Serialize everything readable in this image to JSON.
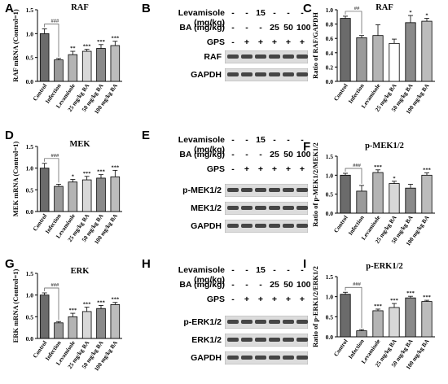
{
  "panel_letters": [
    "A",
    "B",
    "C",
    "D",
    "E",
    "F",
    "G",
    "H",
    "I"
  ],
  "chart_colors": {
    "Control": "#6b6b6b",
    "Infection": "#9a9a9a",
    "Levamisole": "#b4b4b4",
    "25 mg/kg BA": "#d8d8d8",
    "50 mg/kg BA": "#8a8a8a",
    "100 mg/kg BA": "#bcbcbc",
    "C_Control": "#6b6b6b",
    "C_Infection": "#9a9a9a",
    "C_Levamisole": "#b4b4b4",
    "C_25": "#ffffff",
    "C_50": "#8a8a8a",
    "C_100": "#bcbcbc"
  },
  "chart_data": [
    {
      "panel": "A",
      "type": "bar",
      "title": "RAF",
      "ylabel": "RAF mRNA (Control=1)",
      "ylim": [
        0,
        1.5
      ],
      "yticks": [
        "0.0",
        "0.5",
        "1.0",
        "1.5"
      ],
      "categories": [
        "Control",
        "Infection",
        "Levamisole",
        "25 mg/kg BA",
        "50 mg/kg BA",
        "100 mg/kg BA"
      ],
      "values": [
        1.0,
        0.45,
        0.56,
        0.63,
        0.69,
        0.75
      ],
      "errors": [
        0.1,
        0.03,
        0.07,
        0.04,
        0.08,
        0.09
      ],
      "annotations": [
        "",
        "###",
        "**",
        "***",
        "***",
        "***"
      ]
    },
    {
      "panel": "C",
      "type": "bar",
      "title": "RAF",
      "ylabel": "Ratio of RAF/GAPDH",
      "ylim": [
        0,
        1.0
      ],
      "yticks": [
        "0.0",
        "0.2",
        "0.4",
        "0.6",
        "0.8",
        "1.0"
      ],
      "categories": [
        "Control",
        "Infection",
        "Levamisole",
        "25 mg/kg BA",
        "50 mg/kg BA",
        "100 mg/kg BA"
      ],
      "values": [
        0.88,
        0.61,
        0.64,
        0.53,
        0.82,
        0.84
      ],
      "errors": [
        0.03,
        0.03,
        0.15,
        0.06,
        0.1,
        0.04
      ],
      "annotations": [
        "",
        "##",
        "",
        "",
        "*",
        "*"
      ]
    },
    {
      "panel": "D",
      "type": "bar",
      "title": "MEK",
      "ylabel": "MEK mRNA (Control=1)",
      "ylim": [
        0,
        1.5
      ],
      "yticks": [
        "0.0",
        "0.5",
        "1.0",
        "1.5"
      ],
      "categories": [
        "Control",
        "Infection",
        "Levamisole",
        "25 mg/kg BA",
        "50 mg/kg BA",
        "100 mg/kg BA"
      ],
      "values": [
        1.0,
        0.58,
        0.68,
        0.73,
        0.77,
        0.8
      ],
      "errors": [
        0.11,
        0.05,
        0.06,
        0.08,
        0.08,
        0.15
      ],
      "annotations": [
        "",
        "###",
        "*",
        "***",
        "***",
        "***"
      ]
    },
    {
      "panel": "F",
      "type": "bar",
      "title": "p-MEK1/2",
      "ylabel": "Ratio of p-MEK1/2/MEK1/2",
      "ylim": [
        0,
        1.5
      ],
      "yticks": [
        "0.0",
        "0.5",
        "1.0",
        "1.5"
      ],
      "categories": [
        "Control",
        "Infection",
        "Levamisole",
        "25 mg/kg BA",
        "50 mg/kg BA",
        "100 mg/kg BA"
      ],
      "values": [
        1.0,
        0.58,
        1.07,
        0.78,
        0.66,
        1.0
      ],
      "errors": [
        0.05,
        0.15,
        0.07,
        0.06,
        0.1,
        0.06
      ],
      "annotations": [
        "",
        "###",
        "***",
        "*",
        "",
        "***"
      ]
    },
    {
      "panel": "G",
      "type": "bar",
      "title": "ERK",
      "ylabel": "ERK mRNA (Control=1)",
      "ylim": [
        0,
        1.5
      ],
      "yticks": [
        "0.0",
        "0.5",
        "1.0",
        "1.5"
      ],
      "categories": [
        "Control",
        "Infection",
        "Levamisole",
        "25 mg/kg BA",
        "50 mg/kg BA",
        "100 mg/kg BA"
      ],
      "values": [
        1.0,
        0.36,
        0.5,
        0.62,
        0.69,
        0.78
      ],
      "errors": [
        0.05,
        0.03,
        0.08,
        0.1,
        0.07,
        0.05
      ],
      "annotations": [
        "",
        "###",
        "***",
        "***",
        "***",
        "***"
      ]
    },
    {
      "panel": "I",
      "type": "bar",
      "title": "p-ERK1/2",
      "ylabel": "Ratio of p-ERK1/2/ERK1/2",
      "ylim": [
        0,
        1.5
      ],
      "yticks": [
        "0.0",
        "0.5",
        "1.0",
        "1.5"
      ],
      "categories": [
        "Control",
        "Infection",
        "Levamisole",
        "25 mg/kg BA",
        "50 mg/kg BA",
        "100 mg/kg BA"
      ],
      "values": [
        1.06,
        0.15,
        0.65,
        0.73,
        0.97,
        0.88
      ],
      "errors": [
        0.05,
        0.03,
        0.04,
        0.1,
        0.04,
        0.03
      ],
      "annotations": [
        "",
        "###",
        "***",
        "***",
        "***",
        "***"
      ]
    }
  ],
  "blots": [
    {
      "panel": "B",
      "rows": [
        {
          "label": "Levamisole (mg/kg)",
          "cells": [
            "-",
            "-",
            "15",
            "-",
            "-",
            "-"
          ]
        },
        {
          "label": "BA  (mg/kg)",
          "cells": [
            "-",
            "-",
            "-",
            "25",
            "50",
            "100"
          ]
        },
        {
          "label": "GPS",
          "cells": [
            "-",
            "+",
            "+",
            "+",
            "+",
            "+"
          ]
        }
      ],
      "bands": [
        "RAF",
        "GAPDH"
      ]
    },
    {
      "panel": "E",
      "rows": [
        {
          "label": "Levamisole (mg/kg)",
          "cells": [
            "-",
            "-",
            "15",
            "-",
            "-",
            "-"
          ]
        },
        {
          "label": "BA  (mg/kg)",
          "cells": [
            "-",
            "-",
            "-",
            "25",
            "50",
            "100"
          ]
        },
        {
          "label": "GPS",
          "cells": [
            "-",
            "+",
            "+",
            "+",
            "+",
            "+"
          ]
        }
      ],
      "bands": [
        "p-MEK1/2",
        "MEK1/2",
        "GAPDH"
      ]
    },
    {
      "panel": "H",
      "rows": [
        {
          "label": "Levamisole (mg/kg)",
          "cells": [
            "-",
            "-",
            "15",
            "-",
            "-",
            "-"
          ]
        },
        {
          "label": "BA  (mg/kg)",
          "cells": [
            "-",
            "-",
            "-",
            "25",
            "50",
            "100"
          ]
        },
        {
          "label": "GPS",
          "cells": [
            "-",
            "+",
            "+",
            "+",
            "+",
            "+"
          ]
        }
      ],
      "bands": [
        "p-ERK1/2",
        "ERK1/2",
        "GAPDH"
      ]
    }
  ]
}
